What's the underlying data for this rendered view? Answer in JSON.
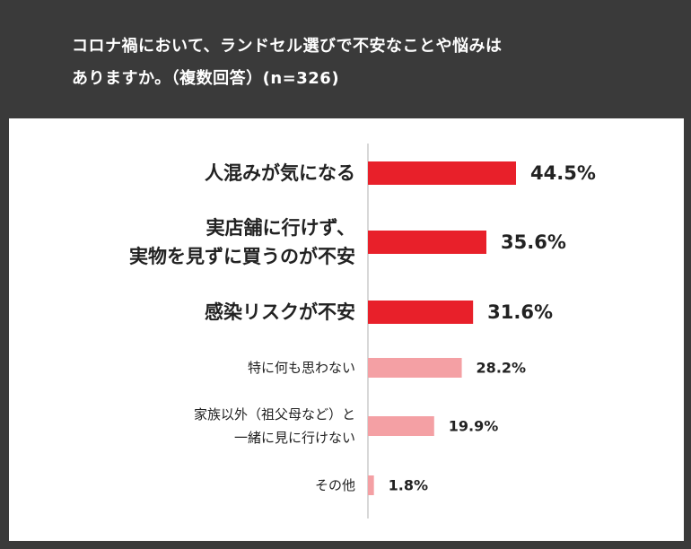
{
  "title_line1": "コロナ禍において、ランドセル選びで不安なことや悩みは",
  "title_line2": "ありますか。（複数回答）(n=326)",
  "colors": {
    "background": "#3a3a3a",
    "panel": "#ffffff",
    "highlight": "#e8202a",
    "normal": "#f4a0a4",
    "axis": "#b0b0b0",
    "text": "#222222"
  },
  "chart_data": {
    "type": "bar",
    "orientation": "horizontal",
    "title": "コロナ禍において、ランドセル選びで不安なことや悩みはありますか。（複数回答）(n=326)",
    "xlabel": "",
    "ylabel": "",
    "xlim": [
      0,
      100
    ],
    "grid": false,
    "categories": [
      [
        "人混みが気になる"
      ],
      [
        "実店舗に行けず、",
        "実物を見ずに買うのが不安"
      ],
      [
        "感染リスクが不安"
      ],
      [
        "特に何も思わない"
      ],
      [
        "家族以外（祖父母など）と",
        "一緒に見に行けない"
      ],
      [
        "その他"
      ]
    ],
    "values": [
      44.5,
      35.6,
      31.6,
      28.2,
      19.9,
      1.8
    ],
    "value_labels": [
      "44.5%",
      "35.6%",
      "31.6%",
      "28.2%",
      "19.9%",
      "1.8%"
    ],
    "highlighted": [
      true,
      true,
      true,
      false,
      false,
      false
    ]
  }
}
